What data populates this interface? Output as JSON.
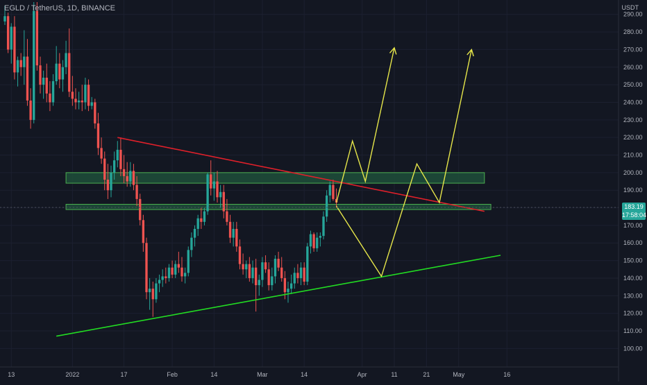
{
  "header": {
    "symbol": "EGLD / TetherUS",
    "interval": "1D",
    "exchange": "BINANCE",
    "currency": "USDT"
  },
  "price_badge": {
    "price": "183.19",
    "countdown": "17:58:04",
    "color": "#26a69a"
  },
  "colors": {
    "background": "#131722",
    "up_candle": "#26a69a",
    "down_candle": "#ef5350",
    "zone_fill": "#1f4f3a",
    "zone_border": "#4caf50",
    "resistance_line": "#e0202a",
    "support_line": "#22dd22",
    "projection": "#e6e64a",
    "axis_text": "#b2b5be"
  },
  "chart_data": {
    "type": "candlestick",
    "title": "EGLD / TetherUS, 1D, BINANCE",
    "y_axis": {
      "unit": "USDT",
      "range": [
        95,
        297
      ],
      "ticks": [
        100,
        110,
        120,
        130,
        140,
        150,
        160,
        170,
        180,
        190,
        200,
        210,
        220,
        230,
        240,
        250,
        260,
        270,
        280,
        290
      ],
      "tick_labels": [
        "100.00",
        "110.00",
        "120.00",
        "130.00",
        "140.00",
        "150.00",
        "160.00",
        "170.00",
        "180.00",
        "190.00",
        "200.00",
        "210.00",
        "220.00",
        "230.00",
        "240.00",
        "250.00",
        "260.00",
        "270.00",
        "280.00",
        "290.00"
      ]
    },
    "x_axis": {
      "first_day": 0,
      "last_day": 187,
      "ticks": [
        {
          "label": "13",
          "day": 2
        },
        {
          "label": "2022",
          "day": 21
        },
        {
          "label": "17",
          "day": 37
        },
        {
          "label": "Feb",
          "day": 52
        },
        {
          "label": "14",
          "day": 65
        },
        {
          "label": "Mar",
          "day": 80
        },
        {
          "label": "14",
          "day": 93
        },
        {
          "label": "Apr",
          "day": 111
        },
        {
          "label": "11",
          "day": 121
        },
        {
          "label": "21",
          "day": 131
        },
        {
          "label": "May",
          "day": 141
        },
        {
          "label": "16",
          "day": 156
        }
      ]
    },
    "candles": [
      [
        286,
        295,
        284,
        289
      ],
      [
        289,
        291,
        268,
        270
      ],
      [
        270,
        285,
        262,
        283
      ],
      [
        283,
        289,
        253,
        257
      ],
      [
        257,
        266,
        249,
        264
      ],
      [
        264,
        268,
        255,
        260
      ],
      [
        260,
        281,
        250,
        266
      ],
      [
        266,
        276,
        238,
        241
      ],
      [
        241,
        248,
        225,
        230
      ],
      [
        230,
        297,
        228,
        292
      ],
      [
        292,
        297,
        258,
        261
      ],
      [
        261,
        266,
        245,
        250
      ],
      [
        250,
        258,
        242,
        254
      ],
      [
        254,
        262,
        240,
        245
      ],
      [
        245,
        252,
        235,
        240
      ],
      [
        240,
        256,
        238,
        252
      ],
      [
        252,
        272,
        250,
        262
      ],
      [
        262,
        268,
        248,
        253
      ],
      [
        253,
        264,
        246,
        260
      ],
      [
        260,
        275,
        256,
        268
      ],
      [
        268,
        282,
        243,
        246
      ],
      [
        246,
        255,
        238,
        242
      ],
      [
        242,
        248,
        236,
        240
      ],
      [
        240,
        246,
        236,
        241
      ],
      [
        241,
        250,
        235,
        240
      ],
      [
        240,
        254,
        236,
        250
      ],
      [
        250,
        253,
        235,
        238
      ],
      [
        238,
        243,
        236,
        240
      ],
      [
        240,
        242,
        225,
        228
      ],
      [
        228,
        234,
        210,
        214
      ],
      [
        214,
        220,
        205,
        208
      ],
      [
        208,
        212,
        190,
        196
      ],
      [
        196,
        205,
        185,
        190
      ],
      [
        190,
        204,
        186,
        200
      ],
      [
        200,
        212,
        196,
        207
      ],
      [
        207,
        218,
        203,
        213
      ],
      [
        213,
        220,
        198,
        202
      ],
      [
        202,
        210,
        194,
        198
      ],
      [
        198,
        206,
        192,
        195
      ],
      [
        195,
        206,
        192,
        201
      ],
      [
        201,
        205,
        190,
        193
      ],
      [
        193,
        198,
        181,
        185
      ],
      [
        185,
        188,
        170,
        173
      ],
      [
        173,
        176,
        155,
        160
      ],
      [
        160,
        163,
        128,
        132
      ],
      [
        132,
        140,
        122,
        134
      ],
      [
        134,
        138,
        118,
        128
      ],
      [
        128,
        140,
        126,
        137
      ],
      [
        137,
        142,
        132,
        139
      ],
      [
        139,
        145,
        135,
        141
      ],
      [
        141,
        146,
        137,
        140
      ],
      [
        140,
        148,
        138,
        146
      ],
      [
        146,
        150,
        140,
        142
      ],
      [
        142,
        150,
        140,
        148
      ],
      [
        148,
        155,
        143,
        146
      ],
      [
        146,
        152,
        138,
        141
      ],
      [
        141,
        146,
        137,
        143
      ],
      [
        143,
        158,
        141,
        156
      ],
      [
        156,
        166,
        152,
        163
      ],
      [
        163,
        170,
        158,
        168
      ],
      [
        168,
        176,
        164,
        174
      ],
      [
        174,
        180,
        168,
        172
      ],
      [
        172,
        180,
        170,
        178
      ],
      [
        178,
        200,
        176,
        199
      ],
      [
        199,
        207,
        187,
        191
      ],
      [
        191,
        200,
        184,
        195
      ],
      [
        195,
        201,
        183,
        186
      ],
      [
        186,
        193,
        180,
        189
      ],
      [
        189,
        193,
        174,
        178
      ],
      [
        178,
        185,
        170,
        172
      ],
      [
        172,
        176,
        160,
        163
      ],
      [
        163,
        172,
        158,
        168
      ],
      [
        168,
        172,
        155,
        158
      ],
      [
        158,
        162,
        145,
        148
      ],
      [
        148,
        154,
        142,
        145
      ],
      [
        145,
        150,
        140,
        148
      ],
      [
        148,
        152,
        138,
        140
      ],
      [
        140,
        150,
        137,
        146
      ],
      [
        146,
        151,
        121,
        136
      ],
      [
        136,
        142,
        130,
        139
      ],
      [
        139,
        152,
        135,
        149
      ],
      [
        149,
        153,
        143,
        145
      ],
      [
        145,
        149,
        133,
        136
      ],
      [
        136,
        146,
        133,
        141
      ],
      [
        141,
        153,
        137,
        151
      ],
      [
        151,
        155,
        144,
        146
      ],
      [
        146,
        152,
        138,
        140
      ],
      [
        140,
        144,
        128,
        132
      ],
      [
        132,
        138,
        126,
        134
      ],
      [
        134,
        142,
        131,
        137
      ],
      [
        137,
        146,
        134,
        143
      ],
      [
        143,
        148,
        137,
        140
      ],
      [
        140,
        149,
        136,
        146
      ],
      [
        146,
        149,
        136,
        138
      ],
      [
        138,
        160,
        136,
        158
      ],
      [
        158,
        167,
        154,
        165
      ],
      [
        165,
        166,
        155,
        157
      ],
      [
        157,
        166,
        155,
        163
      ],
      [
        163,
        166,
        158,
        164
      ],
      [
        164,
        178,
        162,
        175
      ],
      [
        175,
        190,
        172,
        187
      ],
      [
        187,
        195,
        183,
        193
      ],
      [
        193,
        196,
        184,
        185
      ],
      [
        185,
        191,
        180,
        183
      ]
    ],
    "annotations": {
      "zones": [
        {
          "name": "upper-zone",
          "day_from": 19,
          "day_to": 149,
          "price_from": 194,
          "price_to": 200
        },
        {
          "name": "lower-zone",
          "day_from": 19,
          "day_to": 151,
          "price_from": 179,
          "price_to": 182
        }
      ],
      "trendlines": [
        {
          "name": "resistance-trendline",
          "points": [
            [
              35,
              220
            ],
            [
              149,
              178
            ]
          ],
          "color": "#e0202a"
        },
        {
          "name": "support-trendline",
          "points": [
            [
              16,
              107
            ],
            [
              154,
              153
            ]
          ],
          "color": "#22dd22"
        }
      ],
      "projections": [
        {
          "name": "bullish-projection-path",
          "points": [
            [
              103,
              183
            ],
            [
              108,
              218
            ],
            [
              112,
              195
            ],
            [
              121,
              271
            ]
          ],
          "arrow": true
        },
        {
          "name": "bearish-projection-path",
          "points": [
            [
              103,
              181
            ],
            [
              117,
              141
            ],
            [
              128,
              205
            ],
            [
              135,
              183
            ],
            [
              145,
              270
            ]
          ],
          "arrow": true
        }
      ]
    }
  }
}
